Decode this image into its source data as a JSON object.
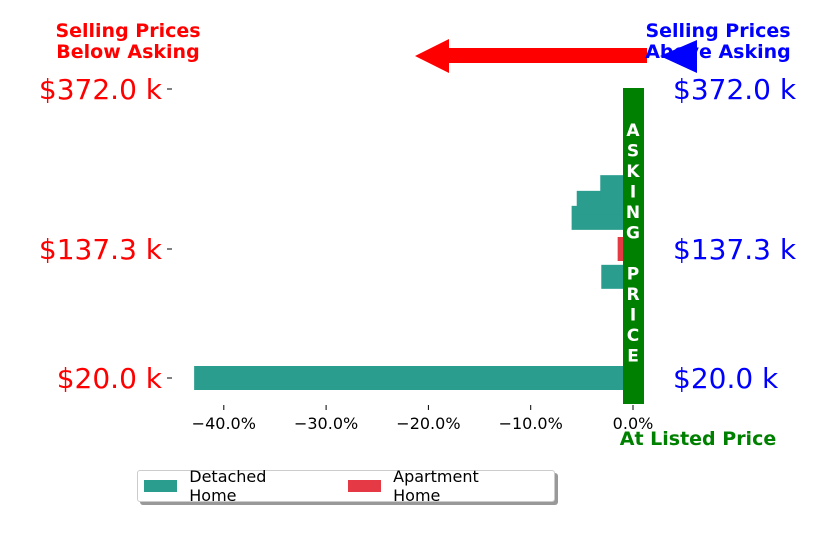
{
  "colors": {
    "detached": "#2a9d8f",
    "apartment": "#e63946",
    "asking_bar": "#008000",
    "left_labels": "#ff0000",
    "right_labels": "#0000ff",
    "red_arrow": "#ff0000",
    "blue_arrow": "#0000ff"
  },
  "headers": {
    "below_asking": "Selling Prices\nBelow Asking",
    "above_asking": "Selling Prices\nAbove Asking",
    "at_listed": "At Listed Price"
  },
  "asking_price_label": "ASKING PRICE",
  "legend": {
    "detached_label": "Detached Home",
    "apartment_label": "Apartment Home"
  },
  "chart_data": {
    "type": "bar",
    "orientation": "horizontal",
    "xlabel": "",
    "ylabel": "",
    "xlim": [
      -45,
      1
    ],
    "x_ticks": [
      -40,
      -30,
      -20,
      -10,
      0
    ],
    "x_tick_labels": [
      "−40.0%",
      "−30.0%",
      "−20.0%",
      "−10.0%",
      "0.0%"
    ],
    "price_ticks": [
      "$372.0 k",
      "$137.3 k",
      "$20.0 k"
    ],
    "series": [
      {
        "name": "Detached Home",
        "bars": [
          {
            "price_k": 20.0,
            "pct": -42.9
          },
          {
            "price_k": 112,
            "pct": -3.1
          },
          {
            "price_k": 183,
            "pct": -6.0
          },
          {
            "price_k": 205,
            "pct": -5.5
          },
          {
            "price_k": 228,
            "pct": -3.2
          }
        ]
      },
      {
        "name": "Apartment Home",
        "bars": [
          {
            "price_k": 137.3,
            "pct": -1.5
          }
        ]
      }
    ],
    "legend_position": "lower-center"
  }
}
